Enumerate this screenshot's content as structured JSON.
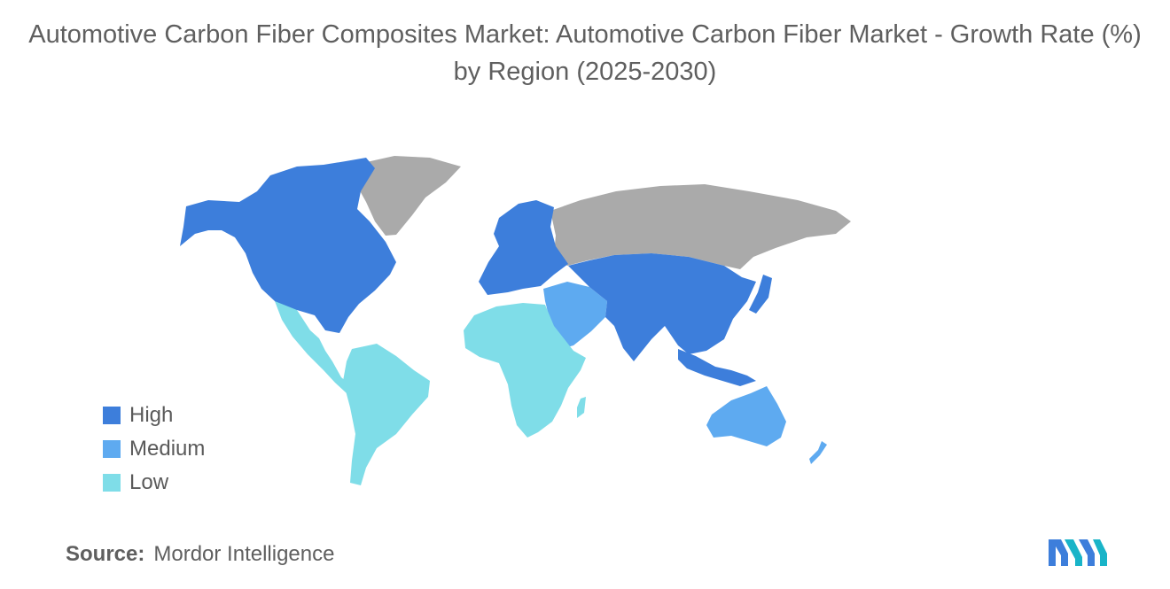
{
  "title": "Automotive Carbon Fiber Composites Market: Automotive Carbon Fiber Market - Growth Rate (%) by Region (2025-2030)",
  "legend": [
    {
      "label": "High",
      "color": "#3d7edb"
    },
    {
      "label": "Medium",
      "color": "#5eaaf0"
    },
    {
      "label": "Low",
      "color": "#7fdde8"
    }
  ],
  "no_data_color": "#aaaaaa",
  "regions": {
    "north_america": "High",
    "europe": "High",
    "asia_pacific": "High",
    "middle_east": "Medium",
    "oceania": "Medium",
    "latin_america": "Low",
    "africa": "Low"
  },
  "source": {
    "label": "Source:",
    "value": "Mordor Intelligence"
  },
  "logo": {
    "name": "mordor-intelligence-logo",
    "colors": [
      "#3d7edb",
      "#19b4c8"
    ]
  }
}
